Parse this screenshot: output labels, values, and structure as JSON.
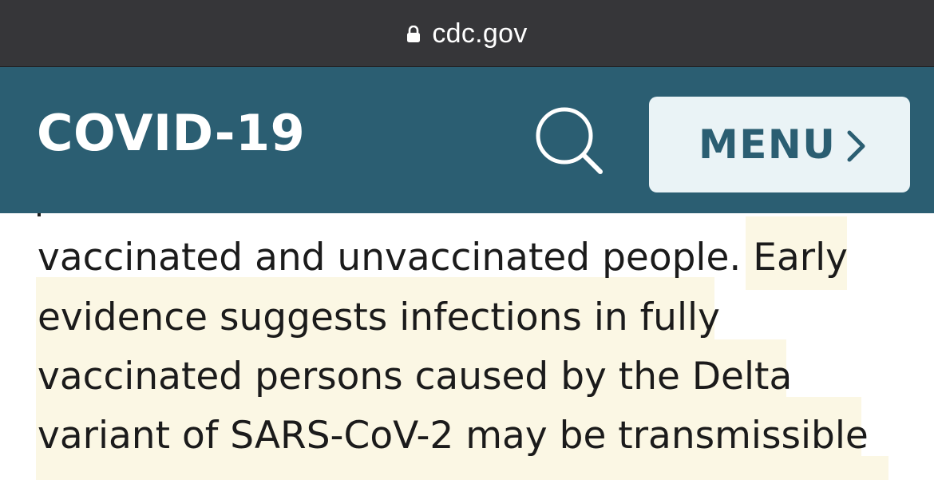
{
  "browser": {
    "domain": "cdc.gov",
    "lock_icon": "lock-icon"
  },
  "header": {
    "title": "COVID-19",
    "search_icon": "search-icon",
    "menu_label": "MENU",
    "menu_icon": "chevron-right-icon",
    "colors": {
      "header_bg": "#2b5e72",
      "menu_bg": "#eaf3f6",
      "highlight": "#fbf7e4"
    }
  },
  "content": {
    "lines": [
      {
        "plain": "vaccinated and unvaccinated people.  ",
        "highlighted": "Early"
      },
      {
        "plain": "",
        "highlighted": "evidence suggests infections in fully"
      },
      {
        "plain": "",
        "highlighted": "vaccinated persons caused by the Delta"
      },
      {
        "plain": "",
        "highlighted": "variant of SARS-CoV-2 may be transmissible"
      }
    ]
  }
}
